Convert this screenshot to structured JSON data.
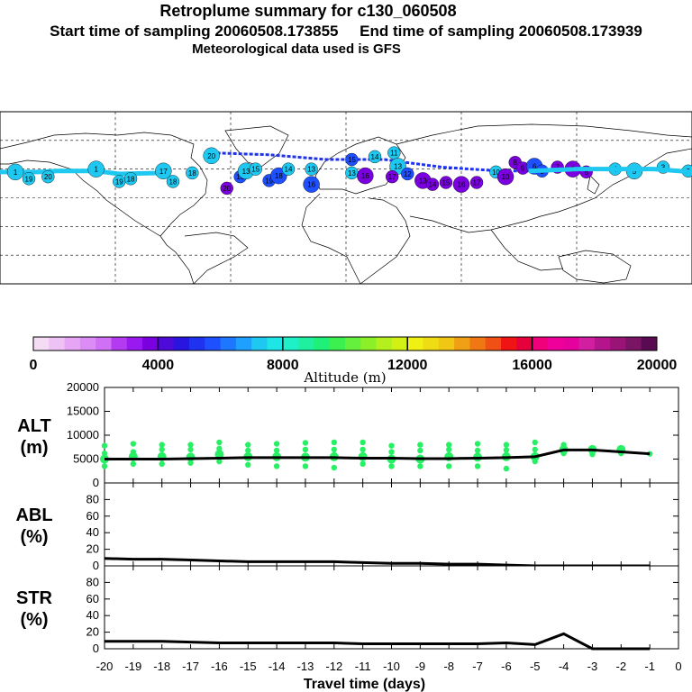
{
  "header": {
    "title": "Retroplume summary for c130_060508",
    "start_label": "Start time of sampling 20060508.173855",
    "end_label": "End time of sampling 20060508.173939",
    "met_label": "Meteorological data used is GFS"
  },
  "map": {
    "track_color": "#1ec8f0",
    "clusters": [
      {
        "lon": -172,
        "lat": 27,
        "color": "#1ec8f0",
        "label": "1"
      },
      {
        "lon": -165,
        "lat": 20,
        "color": "#1ec8f0",
        "label": "19"
      },
      {
        "lon": -155,
        "lat": 22,
        "color": "#1ec8f0",
        "label": "20"
      },
      {
        "lon": -130,
        "lat": 30,
        "color": "#1ec8f0",
        "label": "1"
      },
      {
        "lon": -118,
        "lat": 17,
        "color": "#1ec8f0",
        "label": "19"
      },
      {
        "lon": -112,
        "lat": 20,
        "color": "#1ec8f0",
        "label": "18"
      },
      {
        "lon": -95,
        "lat": 28,
        "color": "#1ec8f0",
        "label": "17"
      },
      {
        "lon": -90,
        "lat": 17,
        "color": "#1ec8f0",
        "label": "18"
      },
      {
        "lon": -80,
        "lat": 26,
        "color": "#1ec8f0",
        "label": "18"
      },
      {
        "lon": -70,
        "lat": 44,
        "color": "#1ec8f0",
        "label": "20"
      },
      {
        "lon": -62,
        "lat": 10,
        "color": "#7a00e0",
        "label": "20"
      },
      {
        "lon": -55,
        "lat": 22,
        "color": "#1e50ff",
        "label": "16"
      },
      {
        "lon": -52,
        "lat": 28,
        "color": "#1ec8f0",
        "label": "13"
      },
      {
        "lon": -47,
        "lat": 30,
        "color": "#1ec8f0",
        "label": "15"
      },
      {
        "lon": -40,
        "lat": 18,
        "color": "#1e50ff",
        "label": "19"
      },
      {
        "lon": -35,
        "lat": 23,
        "color": "#1e50ff",
        "label": "18"
      },
      {
        "lon": -30,
        "lat": 30,
        "color": "#1ec8f0",
        "label": "14"
      },
      {
        "lon": -18,
        "lat": 30,
        "color": "#1ec8f0",
        "label": "13"
      },
      {
        "lon": -18,
        "lat": 14,
        "color": "#1e50ff",
        "label": "16"
      },
      {
        "lon": 3,
        "lat": 26,
        "color": "#1ec8f0",
        "label": "13"
      },
      {
        "lon": 3,
        "lat": 40,
        "color": "#1e50ff",
        "label": "15"
      },
      {
        "lon": 10,
        "lat": 23,
        "color": "#7a00e0",
        "label": "16"
      },
      {
        "lon": 15,
        "lat": 43,
        "color": "#1ec8f0",
        "label": "14"
      },
      {
        "lon": 25,
        "lat": 47,
        "color": "#1ec8f0",
        "label": "11"
      },
      {
        "lon": 27,
        "lat": 33,
        "color": "#1ec8f0",
        "label": "13"
      },
      {
        "lon": 24,
        "lat": 22,
        "color": "#7a00e0",
        "label": "17"
      },
      {
        "lon": 32,
        "lat": 25,
        "color": "#1e50ff",
        "label": "12"
      },
      {
        "lon": 40,
        "lat": 18,
        "color": "#7a00e0",
        "label": "13"
      },
      {
        "lon": 45,
        "lat": 14,
        "color": "#7a00e0",
        "label": "14"
      },
      {
        "lon": 52,
        "lat": 16,
        "color": "#7a00e0",
        "label": "15"
      },
      {
        "lon": 60,
        "lat": 14,
        "color": "#7a00e0",
        "label": "16"
      },
      {
        "lon": 68,
        "lat": 16,
        "color": "#7a00e0",
        "label": "17"
      },
      {
        "lon": 78,
        "lat": 27,
        "color": "#1ec8f0",
        "label": "10"
      },
      {
        "lon": 83,
        "lat": 22,
        "color": "#7a00e0",
        "label": "10"
      },
      {
        "lon": 88,
        "lat": 37,
        "color": "#7a00e0",
        "label": "8"
      },
      {
        "lon": 92,
        "lat": 31,
        "color": "#7a00e0",
        "label": "9"
      },
      {
        "lon": 98,
        "lat": 33,
        "color": "#1e50ff",
        "label": "6"
      },
      {
        "lon": 102,
        "lat": 28,
        "color": "#1e50ff",
        "label": "5"
      },
      {
        "lon": 110,
        "lat": 32,
        "color": "#7a00e0",
        "label": "7"
      },
      {
        "lon": 118,
        "lat": 30,
        "color": "#7a00e0",
        "label": "8"
      },
      {
        "lon": 125,
        "lat": 27,
        "color": "#7a00e0",
        "label": "6"
      },
      {
        "lon": 140,
        "lat": 30,
        "color": "#1ec8f0",
        "label": "4"
      },
      {
        "lon": 150,
        "lat": 28,
        "color": "#1ec8f0",
        "label": "5"
      },
      {
        "lon": 165,
        "lat": 32,
        "color": "#1ec8f0",
        "label": "3"
      },
      {
        "lon": 178,
        "lat": 28,
        "color": "#1ec8f0",
        "label": "2"
      }
    ]
  },
  "colorbar": {
    "colors": [
      "#f5dcf5",
      "#eec2f5",
      "#e6a6f5",
      "#dc8cf5",
      "#d070f5",
      "#b33cf0",
      "#9a19f0",
      "#7a00e0",
      "#4d0ad8",
      "#2a14e0",
      "#1e32f0",
      "#1e50ff",
      "#1e78ff",
      "#1ea0ff",
      "#1ec8f0",
      "#1ee6e6",
      "#1ef0c8",
      "#1ef0a0",
      "#1ef078",
      "#3cf050",
      "#64f03c",
      "#8cf028",
      "#b4f01e",
      "#d2f014",
      "#f0f014",
      "#f0dc14",
      "#f0c814",
      "#f0a014",
      "#f07814",
      "#f05014",
      "#f01414",
      "#e6003c",
      "#f0007a",
      "#f0009a",
      "#e6009e",
      "#d21ea0",
      "#b4148c",
      "#9a1478",
      "#7a1464",
      "#5a0a50"
    ],
    "tick_labels": [
      "0",
      "4000",
      "8000",
      "12000",
      "16000",
      "20000"
    ],
    "title": "Altitude (m)"
  },
  "panels": {
    "alt": {
      "label_line1": "ALT",
      "label_line2": "(m)",
      "yticks": [
        "20000",
        "15000",
        "10000",
        "5000",
        "0"
      ]
    },
    "abl": {
      "label_line1": "ABL",
      "label_line2": "(%)",
      "yticks": [
        "80",
        "60",
        "40",
        "20",
        "0"
      ]
    },
    "str": {
      "label_line1": "STR",
      "label_line2": "(%)",
      "yticks": [
        "80",
        "60",
        "40",
        "20",
        "0"
      ]
    }
  },
  "xaxis": {
    "ticks": [
      "-20",
      "-19",
      "-18",
      "-17",
      "-16",
      "-15",
      "-14",
      "-13",
      "-12",
      "-11",
      "-10",
      "-9",
      "-8",
      "-7",
      "-6",
      "-5",
      "-4",
      "-3",
      "-2",
      "-1",
      "0"
    ],
    "label": "Travel time (days)"
  },
  "chart_data": {
    "type": "line",
    "x": [
      -20,
      -19,
      -18,
      -17,
      -16,
      -15,
      -14,
      -13,
      -12,
      -11,
      -10,
      -9,
      -8,
      -7,
      -6,
      -5,
      -4,
      -3,
      -2,
      -1
    ],
    "series": [
      {
        "name": "ALT (m)",
        "ylim": [
          0,
          20000
        ],
        "values": [
          5000,
          5000,
          5000,
          5100,
          5200,
          5300,
          5300,
          5300,
          5300,
          5200,
          5200,
          5100,
          5100,
          5200,
          5300,
          5500,
          6900,
          6900,
          6500,
          6100
        ]
      },
      {
        "name": "ABL (%)",
        "ylim": [
          0,
          100
        ],
        "values": [
          9,
          8,
          8,
          7,
          6,
          5,
          5,
          5,
          5,
          4,
          3,
          3,
          2,
          2,
          1,
          0,
          0,
          0,
          0,
          0
        ]
      },
      {
        "name": "STR (%)",
        "ylim": [
          0,
          100
        ],
        "values": [
          9,
          9,
          9,
          8,
          7,
          7,
          7,
          7,
          7,
          6,
          6,
          6,
          6,
          6,
          7,
          5,
          18,
          0,
          0,
          0
        ]
      }
    ],
    "alt_scatter": [
      {
        "x": -20,
        "y": [
          3500,
          5000,
          6200,
          7800
        ]
      },
      {
        "x": -19,
        "y": [
          4000,
          5500,
          6500,
          8200
        ]
      },
      {
        "x": -18,
        "y": [
          4000,
          5500,
          7000,
          8000
        ]
      },
      {
        "x": -17,
        "y": [
          4200,
          5400,
          7000,
          8000
        ]
      },
      {
        "x": -16,
        "y": [
          4500,
          6000,
          7200,
          8500
        ]
      },
      {
        "x": -15,
        "y": [
          3800,
          5500,
          6800,
          8000
        ]
      },
      {
        "x": -14,
        "y": [
          3500,
          5500,
          6800,
          8200
        ]
      },
      {
        "x": -13,
        "y": [
          3500,
          5400,
          7000,
          8400
        ]
      },
      {
        "x": -12,
        "y": [
          3200,
          5500,
          7000,
          8500
        ]
      },
      {
        "x": -11,
        "y": [
          4000,
          5500,
          7000,
          8500
        ]
      },
      {
        "x": -10,
        "y": [
          3500,
          5000,
          6500,
          7800
        ]
      },
      {
        "x": -9,
        "y": [
          3500,
          5000,
          6800,
          8000
        ]
      },
      {
        "x": -8,
        "y": [
          3500,
          5500,
          7000,
          8000
        ]
      },
      {
        "x": -7,
        "y": [
          3500,
          5400,
          6800,
          8200
        ]
      },
      {
        "x": -6,
        "y": [
          3000,
          5500,
          6900,
          8000
        ]
      },
      {
        "x": -5,
        "y": [
          4500,
          5500,
          7000,
          8500
        ]
      },
      {
        "x": -4,
        "y": [
          6200,
          7000,
          8000
        ]
      },
      {
        "x": -3,
        "y": [
          6000,
          7000
        ]
      },
      {
        "x": -2,
        "y": [
          6200,
          7000
        ]
      },
      {
        "x": -1,
        "y": [
          6100
        ]
      }
    ],
    "xlabel": "Travel time (days)",
    "xlim": [
      -20,
      0
    ]
  }
}
